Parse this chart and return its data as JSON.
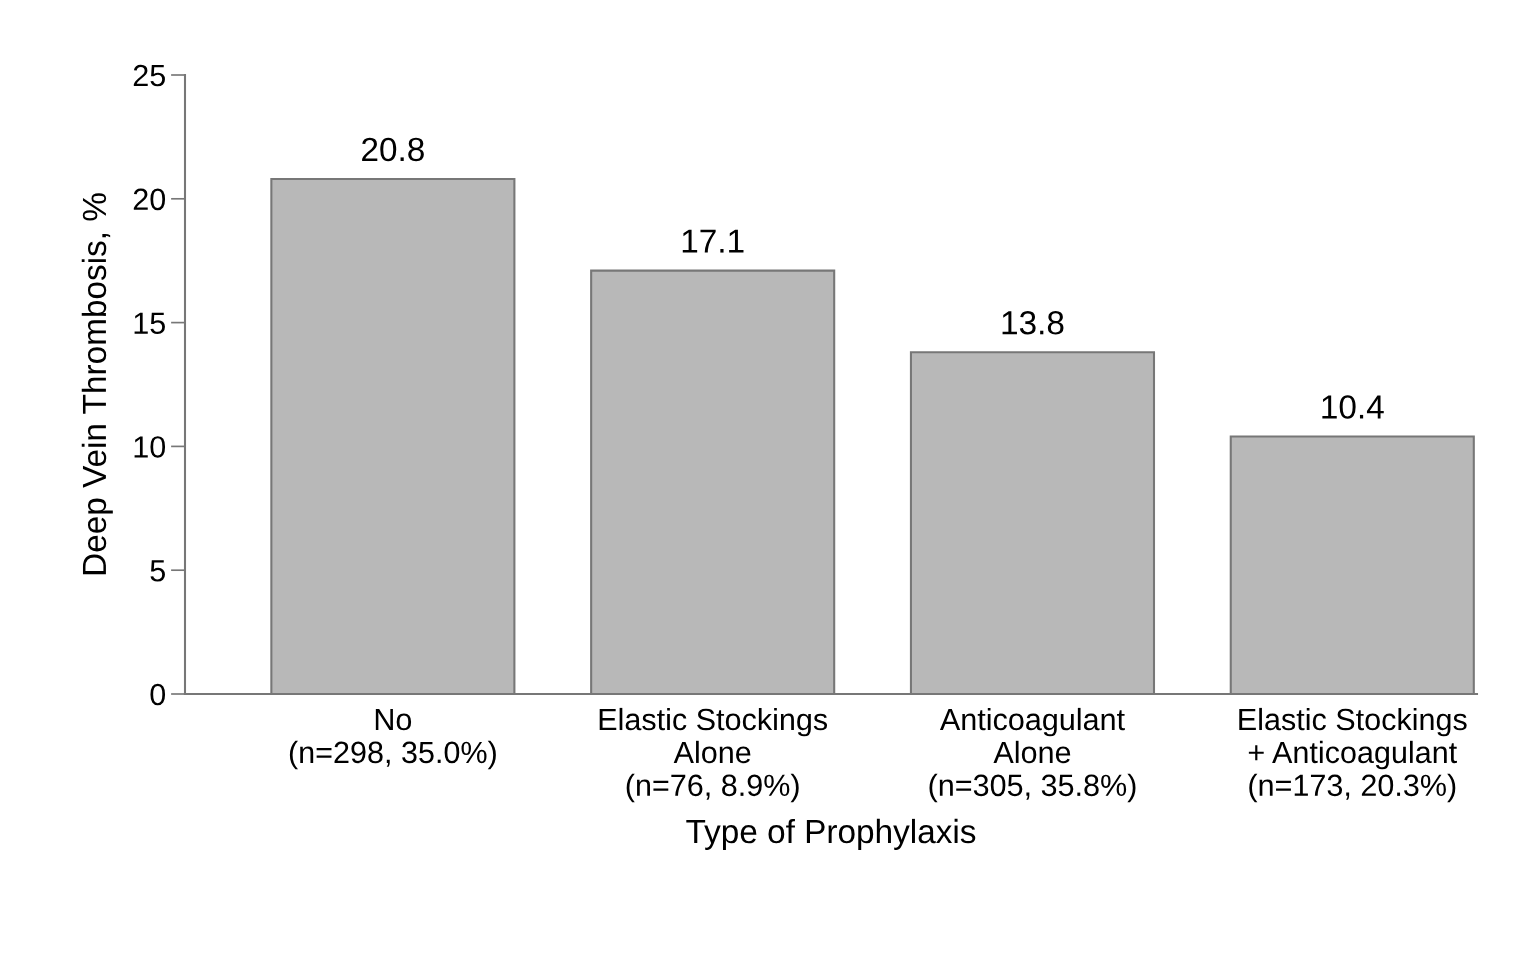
{
  "chart_data": {
    "type": "bar",
    "categories": [
      "No\n(n=298, 35.0%)",
      "Elastic Stockings\nAlone\n(n=76, 8.9%)",
      "Anticoagulant\nAlone\n(n=305, 35.8%)",
      "Elastic Stockings\n+ Anticoagulant\n(n=173, 20.3%)"
    ],
    "values": [
      20.8,
      17.1,
      13.8,
      10.4
    ],
    "color": "#b8b8b8",
    "xlabel": "Type of Prophylaxis",
    "ylabel": "Deep Vein Thrombosis, %",
    "ylim": [
      0,
      25
    ],
    "yticks": [
      0,
      5,
      10,
      15,
      20,
      25
    ],
    "data_labels": true,
    "grid": false
  }
}
